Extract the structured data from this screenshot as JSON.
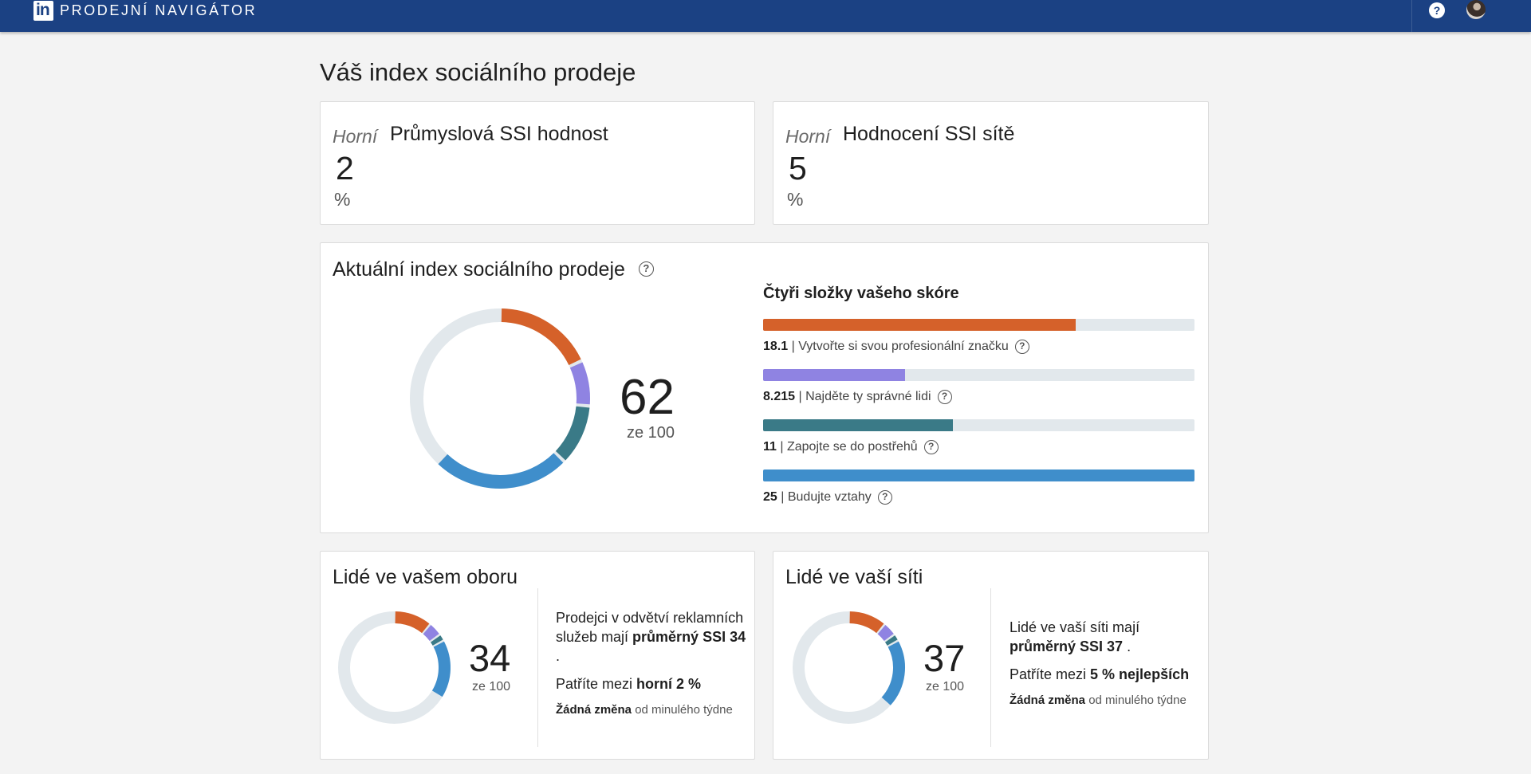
{
  "topbar": {
    "logo_text": "in",
    "brand": "PRODEJNÍ NAVIGÁTOR",
    "help_label": "?"
  },
  "page_title": "Váš index sociálního prodeje",
  "industry_rank": {
    "prefix": "Horní",
    "title": "Průmyslová SSI hodnost",
    "value": "2",
    "unit": "%"
  },
  "network_rank": {
    "prefix": "Horní",
    "title": "Hodnocení SSI sítě",
    "value": "5",
    "unit": "%"
  },
  "current_ssi": {
    "title": "Aktuální index sociálního prodeje",
    "score": "62",
    "score_sub": "ze 100",
    "components_title": "Čtyři složky vašeho skóre",
    "components": [
      {
        "value": "18.1",
        "label": "| Vytvořte si svou profesionální značku",
        "fraction": 0.724,
        "color": "#d5612a"
      },
      {
        "value": "8.215",
        "label": "| Najděte ty správné lidi",
        "fraction": 0.329,
        "color": "#8f83e2"
      },
      {
        "value": "11",
        "label": "| Zapojte se do postřehů",
        "fraction": 0.44,
        "color": "#3a7a87"
      },
      {
        "value": "25",
        "label": "| Budujte vztahy",
        "fraction": 1.0,
        "color": "#3f8ecb"
      }
    ]
  },
  "industry_people": {
    "title": "Lidé ve vašem oboru",
    "score": "34",
    "score_sub": "ze 100",
    "donut_fractions": [
      0.11,
      0.04,
      0.02,
      0.17
    ],
    "desc_text": "Prodejci v odvětví reklamních služeb mají ",
    "desc_bold": "průměrný SSI 34",
    "desc_end": ".",
    "rank_text": "Patříte mezi ",
    "rank_bold": "horní 2 %",
    "change_bold": "Žádná změna",
    "change_text": " od minulého týdne"
  },
  "network_people": {
    "title": "Lidé ve vaší síti",
    "score": "37",
    "score_sub": "ze 100",
    "donut_fractions": [
      0.11,
      0.04,
      0.02,
      0.2
    ],
    "desc_text": "Lidé ve vaší síti mají ",
    "desc_bold": "průměrný SSI 37",
    "desc_end": " .",
    "rank_text": "Patříte mezi ",
    "rank_bold": "5 % nejlepších",
    "change_bold": "Žádná změna",
    "change_text": " od minulého týdne"
  },
  "colors": {
    "track": "#e2e8ec",
    "brand": "#d5612a",
    "people": "#8f83e2",
    "insights": "#3a7a87",
    "relationships": "#3f8ecb",
    "topbar": "#1b4183"
  },
  "icons": [
    "linkedin-logo-icon",
    "help-icon",
    "question-icon"
  ]
}
